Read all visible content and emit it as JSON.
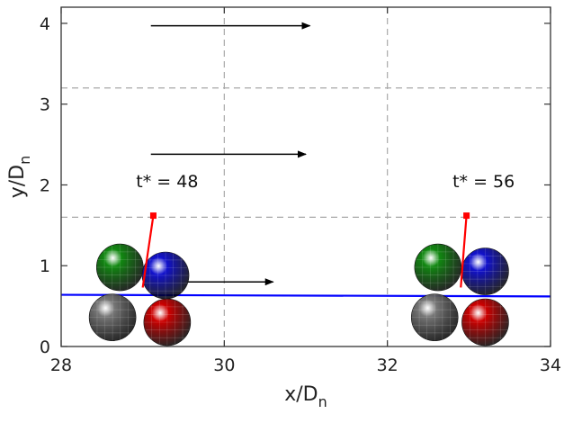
{
  "chart_data": {
    "type": "scatter",
    "xlabel": "x/D",
    "xlabel_sub": "n",
    "ylabel": "y/D",
    "ylabel_sub": "n",
    "xlim": [
      28,
      34
    ],
    "ylim": [
      0,
      4.2
    ],
    "xticks": [
      28,
      30,
      32,
      34
    ],
    "yticks": [
      0,
      1,
      2,
      3,
      4
    ],
    "grid": {
      "vertical_dashed_x": [
        30,
        32
      ],
      "horizontal_dashed_y": [
        1.6,
        3.2
      ]
    },
    "flow_arrows": [
      {
        "y": 3.97,
        "x_start": 29.1,
        "x_end": 31.05
      },
      {
        "y": 2.38,
        "x_start": 29.1,
        "x_end": 31.0
      },
      {
        "y": 0.8,
        "x_start": 29.55,
        "x_end": 30.6
      }
    ],
    "bed_line": {
      "color": "#0000ff",
      "points": [
        [
          28,
          0.64
        ],
        [
          34,
          0.62
        ]
      ]
    },
    "particle_groups": [
      {
        "label": "t* = 48",
        "label_pos": [
          29.3,
          1.97
        ],
        "pole": {
          "base": [
            29.0,
            0.73
          ],
          "top": [
            29.13,
            1.62
          ]
        },
        "spheres": [
          {
            "name": "gray-sphere",
            "color": "#777777",
            "center": [
              28.63,
              0.36
            ]
          },
          {
            "name": "red-sphere",
            "color": "#cc0000",
            "center": [
              29.3,
              0.3
            ]
          },
          {
            "name": "green-sphere",
            "color": "#118811",
            "center": [
              28.72,
              0.98
            ]
          },
          {
            "name": "blue-sphere",
            "color": "#1111cc",
            "center": [
              29.28,
              0.88
            ]
          }
        ]
      },
      {
        "label": "t* = 56",
        "label_pos": [
          33.18,
          1.97
        ],
        "pole": {
          "base": [
            32.9,
            0.73
          ],
          "top": [
            32.97,
            1.62
          ]
        },
        "spheres": [
          {
            "name": "gray-sphere",
            "color": "#777777",
            "center": [
              32.58,
              0.36
            ]
          },
          {
            "name": "red-sphere",
            "color": "#cc0000",
            "center": [
              33.2,
              0.3
            ]
          },
          {
            "name": "green-sphere",
            "color": "#118811",
            "center": [
              32.62,
              0.98
            ]
          },
          {
            "name": "blue-sphere",
            "color": "#1111cc",
            "center": [
              33.2,
              0.93
            ]
          }
        ]
      }
    ]
  }
}
